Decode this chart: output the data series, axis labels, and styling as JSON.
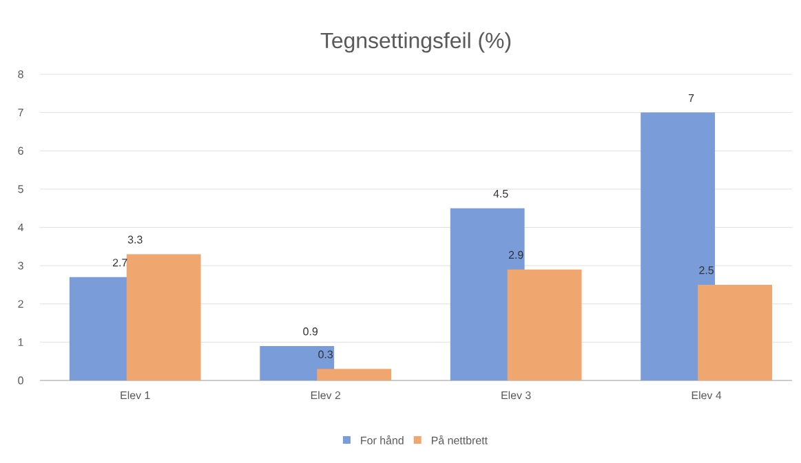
{
  "chart_data": {
    "type": "bar",
    "title": "Tegnsettingsfeil (%)",
    "categories": [
      "Elev 1",
      "Elev 2",
      "Elev 3",
      "Elev 4"
    ],
    "series": [
      {
        "name": "For hånd",
        "color": "#7a9cd8",
        "values": [
          2.7,
          0.9,
          4.5,
          7
        ]
      },
      {
        "name": "På nettbrett",
        "color": "#f0a66f",
        "values": [
          3.3,
          0.3,
          2.9,
          2.5
        ]
      }
    ],
    "ylim": [
      0,
      8
    ],
    "yticks": [
      0,
      1,
      2,
      3,
      4,
      5,
      6,
      7,
      8
    ],
    "grid": "y",
    "legend": "bottom",
    "data_labels": true
  }
}
